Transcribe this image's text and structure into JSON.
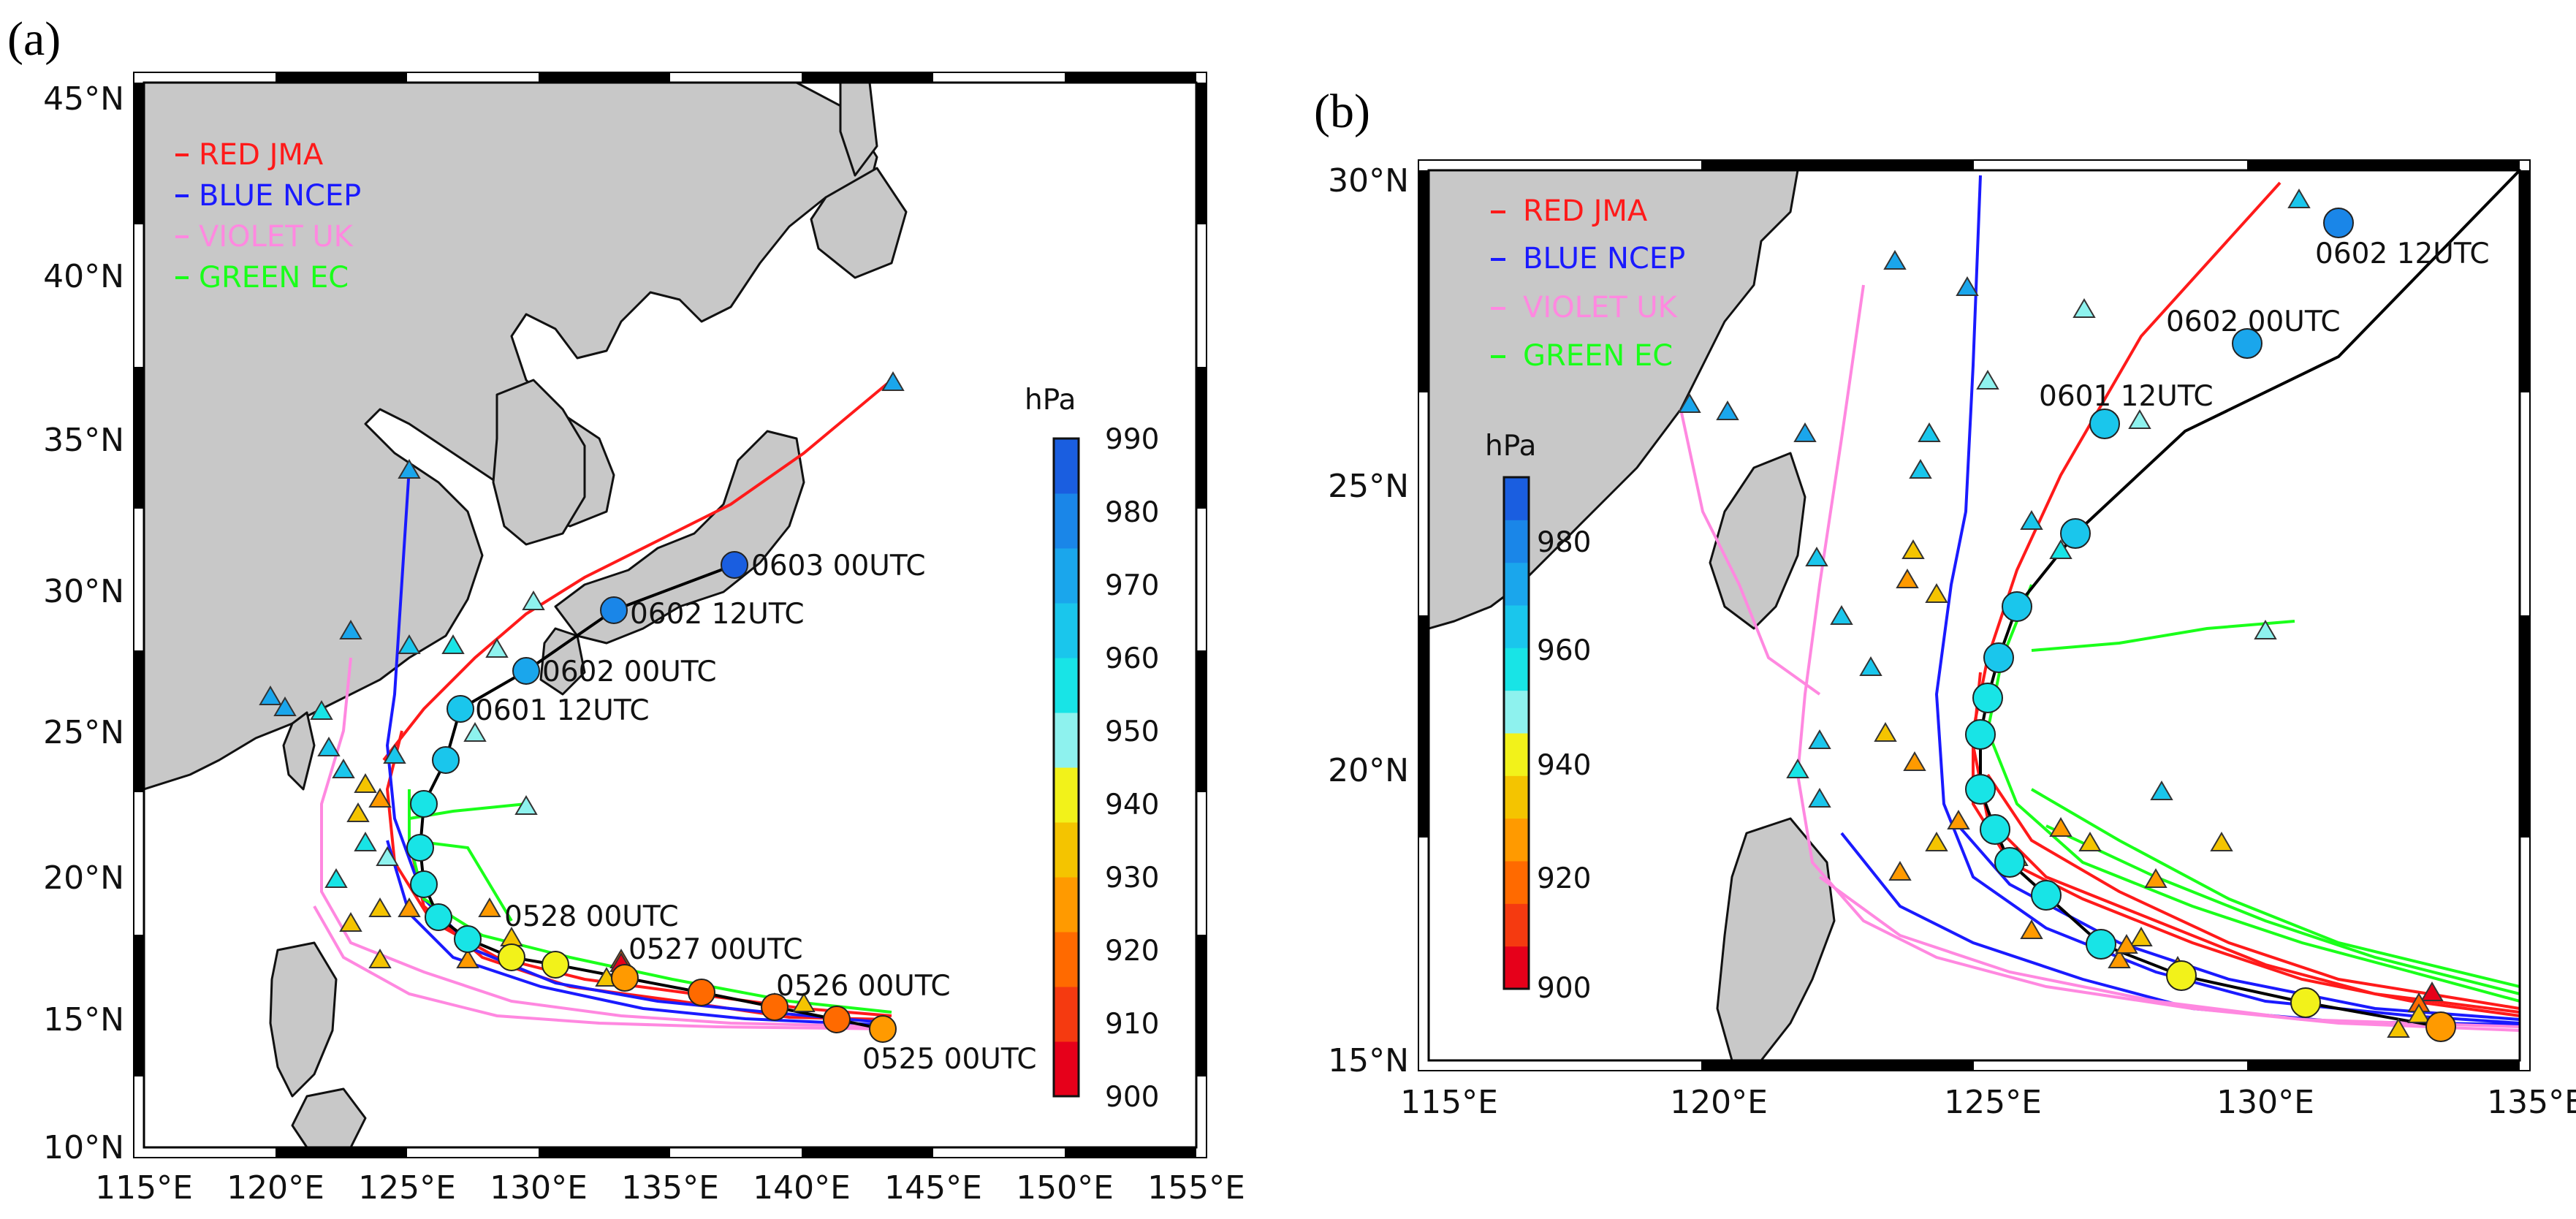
{
  "panels": [
    {
      "label": "(a)",
      "lat_ticks": [
        "10°N",
        "15°N",
        "20°N",
        "25°N",
        "30°N",
        "35°N",
        "40°N",
        "45°N"
      ],
      "lon_ticks": [
        "115°E",
        "120°E",
        "125°E",
        "130°E",
        "135°E",
        "140°E",
        "145°E",
        "150°E",
        "155°E"
      ],
      "legend": [
        {
          "text": "RED JMA",
          "color": "#ff1a1a"
        },
        {
          "text": "BLUE NCEP",
          "color": "#1a1aff"
        },
        {
          "text": "VIOLET UK",
          "color": "#ff88e0"
        },
        {
          "text": "GREEN EC",
          "color": "#1aff1a"
        }
      ],
      "colorbar": {
        "unit": "hPa",
        "ticks": [
          "990",
          "980",
          "970",
          "960",
          "950",
          "940",
          "930",
          "920",
          "910",
          "900"
        ]
      },
      "annotations": [
        "0603 00UTC",
        "0602 12UTC",
        "0602 00UTC",
        "0601 12UTC",
        "0528 00UTC",
        "0527 00UTC",
        "0526 00UTC",
        "0525 00UTC"
      ]
    },
    {
      "label": "(b)",
      "lat_ticks": [
        "15°N",
        "20°N",
        "25°N",
        "30°N"
      ],
      "lon_ticks": [
        "115°E",
        "120°E",
        "125°E",
        "130°E",
        "135°E"
      ],
      "legend": [
        {
          "text": "RED JMA",
          "color": "#ff1a1a"
        },
        {
          "text": "BLUE NCEP",
          "color": "#1a1aff"
        },
        {
          "text": "VIOLET UK",
          "color": "#ff88e0"
        },
        {
          "text": "GREEN EC",
          "color": "#1aff1a"
        }
      ],
      "colorbar": {
        "unit": "hPa",
        "ticks": [
          "980",
          "960",
          "940",
          "920",
          "900"
        ]
      },
      "annotations": [
        "0602 12UTC",
        "0602 00UTC",
        "0601 12UTC"
      ]
    }
  ],
  "pressure_colors": [
    "#e6001a",
    "#f53a10",
    "#ff6a00",
    "#ff9a00",
    "#f4c400",
    "#f2f21a",
    "#8ef2ee",
    "#18e4e6",
    "#1ac6ec",
    "#1aa6ec",
    "#1a86e8",
    "#1a5ee0"
  ],
  "best_track_color": "#000000",
  "land_color": "#c8c8c8"
}
